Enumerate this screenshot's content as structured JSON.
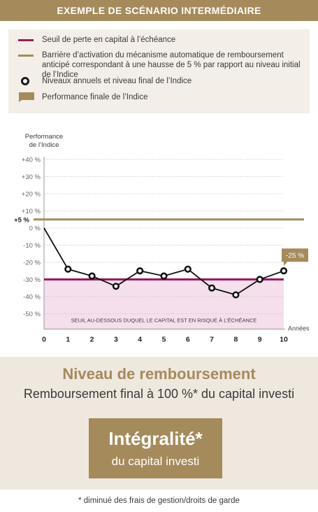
{
  "banner": {
    "title": "EXEMPLE DE SCÉNARIO INTERMÉDIAIRE"
  },
  "legend": {
    "items": [
      {
        "label": "Seuil de perte en capital à l’échéance"
      },
      {
        "label": "Barrière d’activation du mécanisme automatique de remboursement anticipé correspondant à une hausse de 5 % par rapport au niveau initial de l’Indice"
      },
      {
        "label": "Niveaux annuels et niveau final de l’Indice"
      },
      {
        "label": "Performance finale de l’Indice"
      }
    ]
  },
  "colors": {
    "gold": "#a58a5c",
    "purple": "#9b1a5e",
    "zone": "#f5dfec",
    "panel": "#efe8df",
    "legend_bg": "#f3eee7"
  },
  "chart_data": {
    "type": "line",
    "ylabel": "Performance de l’Indice",
    "xlabel": "Années",
    "ylim": [
      -55,
      45
    ],
    "y_ticks": [
      "+40 %",
      "+30 %",
      "+20 %",
      "+10 %",
      "+5 %",
      "0 %",
      "-10 %",
      "-20 %",
      "-30 %",
      "-40 %",
      "-50 %"
    ],
    "y_tick_values": [
      40,
      30,
      20,
      10,
      5,
      0,
      -10,
      -20,
      -30,
      -40,
      -50
    ],
    "x": [
      0,
      1,
      2,
      3,
      4,
      5,
      6,
      7,
      8,
      9,
      10
    ],
    "x_ticks": [
      "0",
      "1",
      "2",
      "3",
      "4",
      "5",
      "6",
      "7",
      "8",
      "9",
      "10"
    ],
    "series": [
      {
        "name": "Niveaux annuels et niveau final de l’Indice",
        "values": [
          0,
          -24,
          -28,
          -34,
          -25,
          -28,
          -24,
          -35,
          -39,
          -30,
          -25
        ]
      }
    ],
    "barrier": 5,
    "loss_threshold": -30,
    "final_label": "-25 %",
    "zone_label": "SEUIL AU-DESSOUS DUQUEL LE CAPITAL EST EN RISQUE À L’ÉCHÉANCE",
    "grid": true
  },
  "result": {
    "heading": "Niveau de remboursement",
    "subheading": "Remboursement final à 100 %* du capital investi",
    "box_title": "Intégralité*",
    "box_sub": "du capital investi",
    "footnote": "* diminué des frais de gestion/droits de garde"
  }
}
